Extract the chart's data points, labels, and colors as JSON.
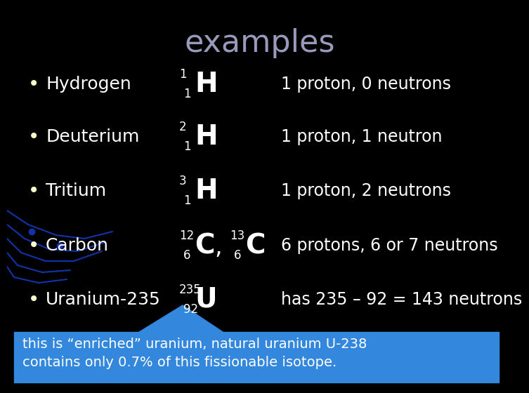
{
  "title": "examples",
  "background_color": "#000000",
  "title_color": "#9999bb",
  "title_fontsize": 32,
  "text_color": "#ffffff",
  "bullet_color": "#ffffcc",
  "rows": [
    {
      "label": "Hydrogen",
      "symbol": "H",
      "mass": "1",
      "atomic": "1",
      "description": "1 proton, 0 neutrons"
    },
    {
      "label": "Deuterium",
      "symbol": "H",
      "mass": "2",
      "atomic": "1",
      "description": "1 proton, 1 neutron"
    },
    {
      "label": "Tritium",
      "symbol": "H",
      "mass": "3",
      "atomic": "1",
      "description": "1 proton, 2 neutrons"
    },
    {
      "label": "Carbon",
      "symbol": "C",
      "mass": "12",
      "atomic": "6",
      "symbol2": "C",
      "mass2": "13",
      "atomic2": "6",
      "comma": true,
      "description": "6 protons, 6 or 7 neutrons"
    },
    {
      "label": "Uranium-235",
      "symbol": "U",
      "mass": "235",
      "atomic": "92",
      "description": "has 235 – 92 = 143 neutrons"
    }
  ],
  "footnote_bg": "#3388dd",
  "footnote_text_line1": "this is “enriched” uranium, natural uranium U-238",
  "footnote_text_line2": "contains only 0.7% of this fissionable isotope.",
  "footnote_color": "#ffffff",
  "footnote_fontsize": 14,
  "blue_lines_color": "#1133aa"
}
